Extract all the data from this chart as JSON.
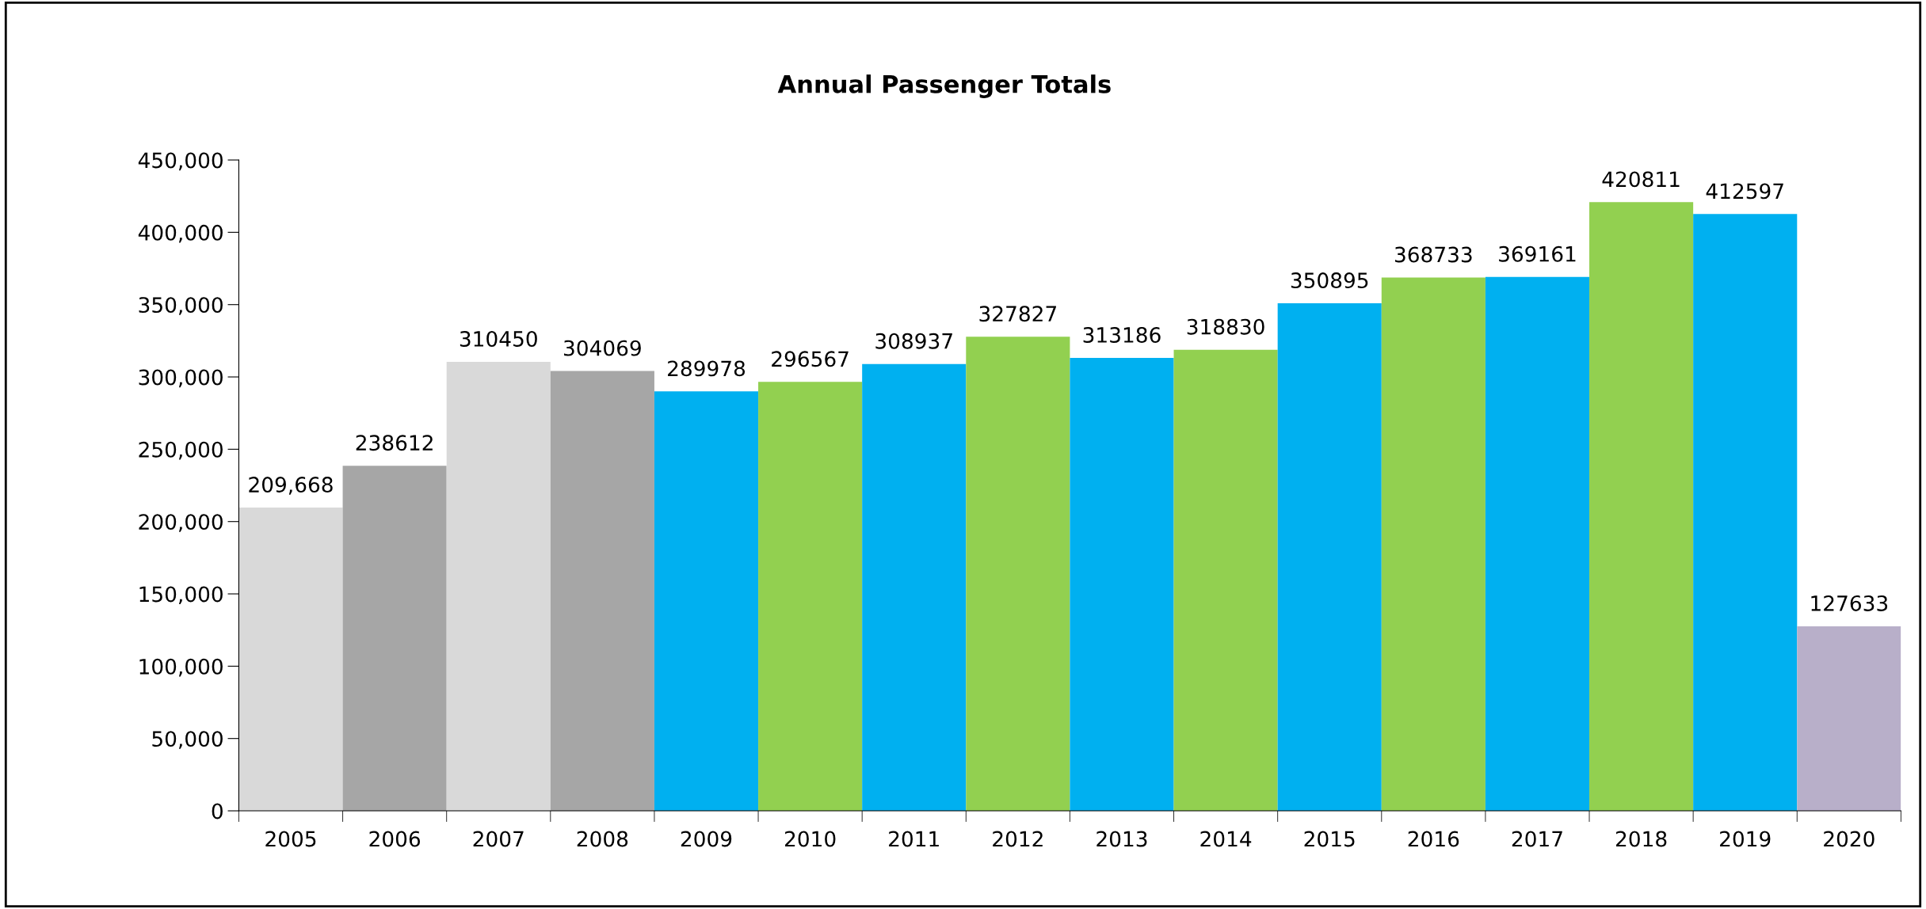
{
  "chart_data": {
    "type": "bar",
    "title": "Annual Passenger Totals",
    "categories": [
      "2005",
      "2006",
      "2007",
      "2008",
      "2009",
      "2010",
      "2011",
      "2012",
      "2013",
      "2014",
      "2015",
      "2016",
      "2017",
      "2018",
      "2019",
      "2020"
    ],
    "values": [
      209668,
      238612,
      310450,
      304069,
      289978,
      296567,
      308937,
      327827,
      313186,
      318830,
      350895,
      368733,
      369161,
      420811,
      412597,
      127633
    ],
    "value_labels": [
      "209,668",
      "238612",
      "310450",
      "304069",
      "289978",
      "296567",
      "308937",
      "327827",
      "313186",
      "318830",
      "350895",
      "368733",
      "369161",
      "420811",
      "412597",
      "127633"
    ],
    "colors": [
      "#d9d9d9",
      "#a6a6a6",
      "#d9d9d9",
      "#a6a6a6",
      "#00b0f0",
      "#92d050",
      "#00b0f0",
      "#92d050",
      "#00b0f0",
      "#92d050",
      "#00b0f0",
      "#92d050",
      "#00b0f0",
      "#92d050",
      "#00b0f0",
      "#b8afc9"
    ],
    "ylim": [
      0,
      450000
    ],
    "yticks": [
      {
        "value": 0,
        "label": "0"
      },
      {
        "value": 50000,
        "label": "50,000"
      },
      {
        "value": 100000,
        "label": "100,000"
      },
      {
        "value": 150000,
        "label": "150,000"
      },
      {
        "value": 200000,
        "label": "200,000"
      },
      {
        "value": 250000,
        "label": "250,000"
      },
      {
        "value": 300000,
        "label": "300,000"
      },
      {
        "value": 350000,
        "label": "350,000"
      },
      {
        "value": 400000,
        "label": "400,000"
      },
      {
        "value": 450000,
        "label": "450,000"
      }
    ],
    "grid": false,
    "legend": false
  }
}
